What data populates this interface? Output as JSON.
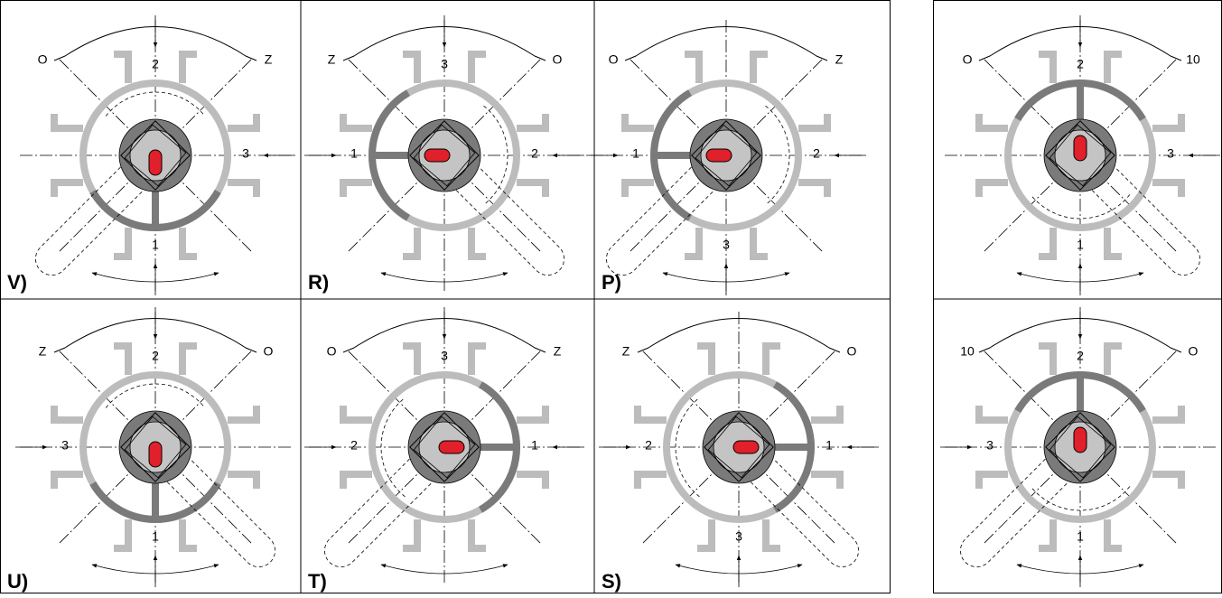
{
  "panels": [
    {
      "letter": "V)",
      "arc_left": "O",
      "arc_right": "Z",
      "ports": {
        "top": "2",
        "right": "3",
        "bottom": "1"
      }
    },
    {
      "letter": "R)",
      "arc_left": "Z",
      "arc_right": "O",
      "ports": {
        "top": "3",
        "left": "1",
        "right": "2"
      }
    },
    {
      "letter": "P)",
      "arc_left": "O",
      "arc_right": "Z",
      "ports": {
        "left": "1",
        "right": "2",
        "bottom": "3"
      }
    },
    {
      "arc_left": "O",
      "arc_right": "10",
      "ports": {
        "top": "2",
        "right": "3",
        "bottom": "1"
      }
    },
    {
      "letter": "U)",
      "arc_left": "Z",
      "arc_right": "O",
      "ports": {
        "top": "2",
        "left": "3",
        "bottom": "1"
      }
    },
    {
      "letter": "T)",
      "arc_left": "O",
      "arc_right": "Z",
      "ports": {
        "top": "3",
        "left": "2",
        "right": "1"
      }
    },
    {
      "letter": "S)",
      "arc_left": "Z",
      "arc_right": "O",
      "ports": {
        "left": "2",
        "right": "1",
        "bottom": "3"
      }
    },
    {
      "arc_left": "10",
      "arc_right": "O",
      "ports": {
        "top": "2",
        "left": "3",
        "bottom": "1"
      }
    }
  ]
}
